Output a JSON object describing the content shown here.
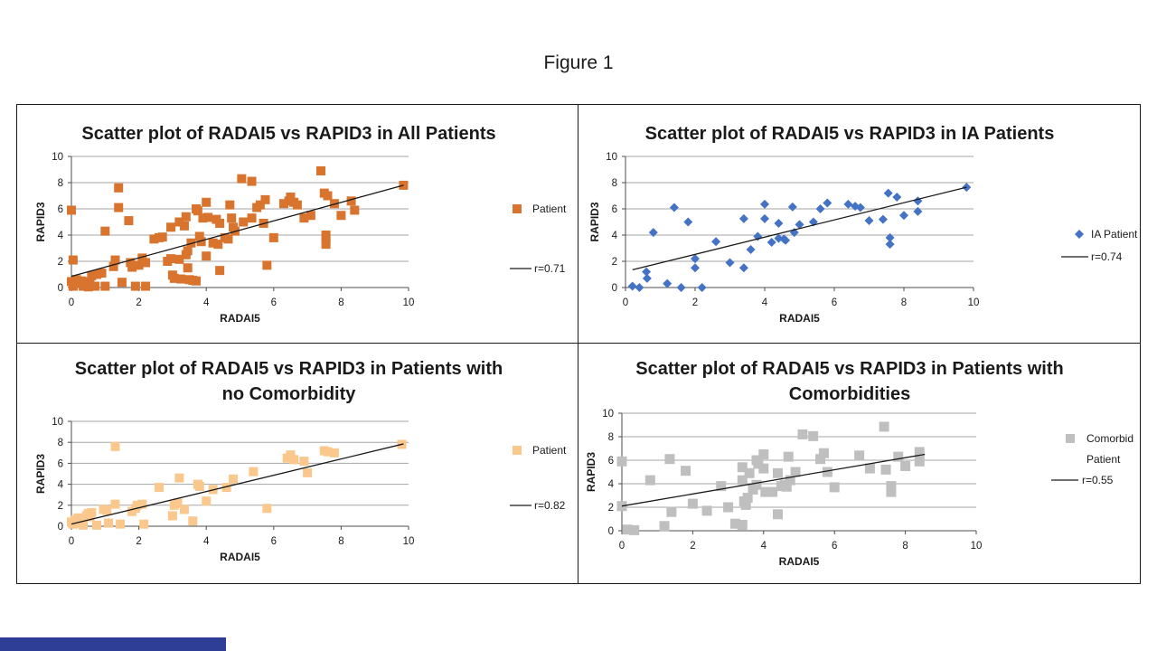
{
  "figure_title": "Figure 1",
  "colors": {
    "all_patients_marker": "#D9742E",
    "ia_patients_marker": "#4472C4",
    "no_comorbidity_marker": "#FAC88C",
    "comorbid_marker": "#BFBFBF",
    "trend_line": "#1a1a1a",
    "gridline": "#A6A6A6",
    "axis_line": "#4d4d4d",
    "panel_border": "#1a1a1a",
    "accent_bar": "#2E3D96"
  },
  "chart_data": [
    {
      "type": "scatter",
      "title_lines": [
        "Scatter plot of RADAI5 vs RAPID3 in All Patients"
      ],
      "xlabel": "RADAI5",
      "ylabel": "RAPID3",
      "xlim": [
        0,
        10
      ],
      "ylim": [
        0,
        10
      ],
      "xticks": [
        0,
        2,
        4,
        6,
        8,
        10
      ],
      "yticks": [
        0,
        2,
        4,
        6,
        8,
        10
      ],
      "grid": "horizontal",
      "legend_position": "right",
      "legend": {
        "series_label_lines": [
          "Patient"
        ],
        "trend_label": "r=0.71"
      },
      "marker": {
        "shape": "square",
        "color": "#D9742E",
        "size": 10
      },
      "trend": {
        "r": 0.71,
        "x1": 0,
        "y1": 0.85,
        "x2": 9.85,
        "y2": 7.8
      },
      "points": [
        [
          0,
          5.9
        ],
        [
          0.05,
          2.1
        ],
        [
          0,
          0.45
        ],
        [
          0.05,
          0.1
        ],
        [
          0.15,
          0.6
        ],
        [
          0.2,
          0.3
        ],
        [
          0.3,
          0.5
        ],
        [
          0.35,
          0.1
        ],
        [
          0.45,
          0.25
        ],
        [
          0.5,
          0.05
        ],
        [
          0.55,
          0.45
        ],
        [
          0.6,
          0.9
        ],
        [
          0.7,
          0.1
        ],
        [
          0.75,
          1.0
        ],
        [
          0.9,
          1.1
        ],
        [
          1.0,
          4.3
        ],
        [
          1.0,
          0.1
        ],
        [
          1.25,
          1.6
        ],
        [
          1.3,
          2.1
        ],
        [
          1.4,
          7.6
        ],
        [
          1.4,
          6.1
        ],
        [
          1.5,
          0.4
        ],
        [
          1.7,
          5.1
        ],
        [
          1.75,
          1.9
        ],
        [
          1.8,
          1.55
        ],
        [
          1.9,
          0.1
        ],
        [
          2.0,
          1.7
        ],
        [
          2.1,
          2.25
        ],
        [
          2.2,
          1.9
        ],
        [
          2.2,
          0.1
        ],
        [
          2.45,
          3.7
        ],
        [
          2.6,
          3.8
        ],
        [
          2.7,
          3.85
        ],
        [
          2.85,
          2.0
        ],
        [
          2.95,
          2.2
        ],
        [
          2.95,
          4.6
        ],
        [
          3.0,
          0.95
        ],
        [
          3.05,
          0.7
        ],
        [
          3.2,
          5.0
        ],
        [
          3.2,
          2.15
        ],
        [
          3.25,
          0.65
        ],
        [
          3.35,
          4.7
        ],
        [
          3.4,
          5.4
        ],
        [
          3.4,
          2.5
        ],
        [
          3.45,
          2.8
        ],
        [
          3.45,
          1.5
        ],
        [
          3.5,
          0.6
        ],
        [
          3.6,
          0.55
        ],
        [
          3.7,
          0.5
        ],
        [
          3.55,
          3.4
        ],
        [
          3.7,
          6.0
        ],
        [
          3.75,
          5.85
        ],
        [
          3.8,
          3.9
        ],
        [
          3.85,
          3.5
        ],
        [
          3.9,
          5.3
        ],
        [
          4.0,
          6.5
        ],
        [
          4.05,
          5.35
        ],
        [
          4.0,
          2.4
        ],
        [
          4.2,
          3.4
        ],
        [
          4.35,
          3.3
        ],
        [
          4.3,
          5.2
        ],
        [
          4.4,
          4.9
        ],
        [
          4.4,
          1.3
        ],
        [
          4.55,
          3.8
        ],
        [
          4.65,
          3.7
        ],
        [
          4.7,
          6.3
        ],
        [
          4.75,
          5.3
        ],
        [
          4.8,
          4.6
        ],
        [
          4.85,
          4.3
        ],
        [
          5.05,
          8.3
        ],
        [
          5.35,
          8.1
        ],
        [
          5.1,
          5.0
        ],
        [
          5.35,
          5.3
        ],
        [
          5.5,
          6.1
        ],
        [
          5.6,
          6.3
        ],
        [
          5.75,
          6.7
        ],
        [
          5.7,
          4.9
        ],
        [
          5.8,
          1.7
        ],
        [
          6.0,
          3.8
        ],
        [
          6.3,
          6.4
        ],
        [
          6.45,
          6.6
        ],
        [
          6.5,
          6.9
        ],
        [
          6.6,
          6.5
        ],
        [
          6.7,
          6.3
        ],
        [
          6.9,
          5.3
        ],
        [
          7.1,
          5.5
        ],
        [
          7.4,
          8.9
        ],
        [
          7.5,
          7.2
        ],
        [
          7.6,
          7.0
        ],
        [
          7.55,
          4.0
        ],
        [
          7.55,
          3.7
        ],
        [
          7.55,
          3.3
        ],
        [
          7.8,
          6.4
        ],
        [
          8.0,
          5.5
        ],
        [
          8.3,
          6.6
        ],
        [
          8.4,
          5.9
        ],
        [
          9.85,
          7.8
        ]
      ]
    },
    {
      "type": "scatter",
      "title_lines": [
        "Scatter plot of RADAI5 vs RAPID3 in IA Patients"
      ],
      "xlabel": "RADAI5",
      "ylabel": "RAPID3",
      "xlim": [
        0,
        10
      ],
      "ylim": [
        0,
        10
      ],
      "xticks": [
        0,
        2,
        4,
        6,
        8,
        10
      ],
      "yticks": [
        0,
        2,
        4,
        6,
        8,
        10
      ],
      "grid": "horizontal",
      "legend_position": "right",
      "legend": {
        "series_label_lines": [
          "IA Patient"
        ],
        "trend_label": "r=0.74"
      },
      "marker": {
        "shape": "diamond",
        "color": "#4472C4",
        "size": 10
      },
      "trend": {
        "r": 0.74,
        "x1": 0.2,
        "y1": 1.35,
        "x2": 9.8,
        "y2": 7.65
      },
      "points": [
        [
          0.2,
          0.1
        ],
        [
          0.4,
          0
        ],
        [
          0.6,
          1.2
        ],
        [
          0.62,
          0.7
        ],
        [
          0.8,
          4.2
        ],
        [
          1.2,
          0.3
        ],
        [
          1.4,
          6.1
        ],
        [
          1.6,
          0
        ],
        [
          1.8,
          5.0
        ],
        [
          2.0,
          2.2
        ],
        [
          2.0,
          1.5
        ],
        [
          2.2,
          0
        ],
        [
          2.6,
          3.5
        ],
        [
          3.0,
          1.9
        ],
        [
          3.4,
          5.25
        ],
        [
          3.4,
          1.5
        ],
        [
          3.6,
          2.9
        ],
        [
          3.8,
          3.9
        ],
        [
          4.0,
          6.35
        ],
        [
          4.0,
          5.25
        ],
        [
          4.2,
          3.45
        ],
        [
          4.4,
          4.9
        ],
        [
          4.4,
          3.75
        ],
        [
          4.55,
          3.7
        ],
        [
          4.6,
          3.6
        ],
        [
          4.8,
          6.15
        ],
        [
          4.85,
          4.2
        ],
        [
          5.0,
          4.8
        ],
        [
          5.4,
          5.0
        ],
        [
          5.6,
          6.0
        ],
        [
          5.8,
          6.45
        ],
        [
          6.4,
          6.35
        ],
        [
          6.6,
          6.2
        ],
        [
          6.75,
          6.1
        ],
        [
          7.0,
          5.1
        ],
        [
          7.4,
          5.2
        ],
        [
          7.55,
          7.2
        ],
        [
          7.6,
          3.8
        ],
        [
          7.6,
          3.3
        ],
        [
          7.8,
          6.9
        ],
        [
          8.0,
          5.5
        ],
        [
          8.4,
          6.6
        ],
        [
          8.4,
          5.8
        ],
        [
          9.8,
          7.65
        ]
      ]
    },
    {
      "type": "scatter",
      "title_lines": [
        "Scatter plot of RADAI5 vs RAPID3 in Patients with",
        "no Comorbidity"
      ],
      "xlabel": "RADAI5",
      "ylabel": "RAPID3",
      "xlim": [
        0,
        10
      ],
      "ylim": [
        0,
        10
      ],
      "xticks": [
        0,
        2,
        4,
        6,
        8,
        10
      ],
      "yticks": [
        0,
        2,
        4,
        6,
        8,
        10
      ],
      "grid": "horizontal",
      "legend_position": "right",
      "legend": {
        "series_label_lines": [
          "Patient"
        ],
        "trend_label": "r=0.82"
      },
      "marker": {
        "shape": "square",
        "color": "#FAC88C",
        "size": 10
      },
      "trend": {
        "r": 0.82,
        "x1": 0,
        "y1": 0.2,
        "x2": 9.85,
        "y2": 7.85
      },
      "points": [
        [
          0,
          0.4
        ],
        [
          0.05,
          0.2
        ],
        [
          0.1,
          0.6
        ],
        [
          0.2,
          0.8
        ],
        [
          0.3,
          0.3
        ],
        [
          0.35,
          0.1
        ],
        [
          0.45,
          1.0
        ],
        [
          0.5,
          1.2
        ],
        [
          0.55,
          0.9
        ],
        [
          0.6,
          1.3
        ],
        [
          0.75,
          0.1
        ],
        [
          0.95,
          1.6
        ],
        [
          1.05,
          1.5
        ],
        [
          1.1,
          0.3
        ],
        [
          1.3,
          7.6
        ],
        [
          1.3,
          2.1
        ],
        [
          1.45,
          0.2
        ],
        [
          1.8,
          1.4
        ],
        [
          1.9,
          1.7
        ],
        [
          1.95,
          2.0
        ],
        [
          2.1,
          2.1
        ],
        [
          2.15,
          0.2
        ],
        [
          2.6,
          3.7
        ],
        [
          3.0,
          1.0
        ],
        [
          3.05,
          2.0
        ],
        [
          3.15,
          2.2
        ],
        [
          3.2,
          4.6
        ],
        [
          3.35,
          1.6
        ],
        [
          3.6,
          0.5
        ],
        [
          3.75,
          4.0
        ],
        [
          3.8,
          3.8
        ],
        [
          4.0,
          2.4
        ],
        [
          4.2,
          3.5
        ],
        [
          4.6,
          3.7
        ],
        [
          4.8,
          4.5
        ],
        [
          5.4,
          5.2
        ],
        [
          5.8,
          1.7
        ],
        [
          6.4,
          6.5
        ],
        [
          6.5,
          6.8
        ],
        [
          6.6,
          6.35
        ],
        [
          6.9,
          6.2
        ],
        [
          7.0,
          5.1
        ],
        [
          7.5,
          7.2
        ],
        [
          7.6,
          7.1
        ],
        [
          7.8,
          7.0
        ],
        [
          9.8,
          7.8
        ]
      ]
    },
    {
      "type": "scatter",
      "title_lines": [
        "Scatter plot of RADAI5 vs RAPID3 in Patients with",
        "Comorbidities"
      ],
      "xlabel": "RADAI5",
      "ylabel": "RAPID3",
      "xlim": [
        0,
        10
      ],
      "ylim": [
        0,
        10
      ],
      "xticks": [
        0,
        2,
        4,
        6,
        8,
        10
      ],
      "yticks": [
        0,
        2,
        4,
        6,
        8,
        10
      ],
      "grid": "horizontal",
      "legend_position": "right",
      "legend": {
        "series_label_lines": [
          "Comorbid",
          "Patient"
        ],
        "trend_label": "r=0.55"
      },
      "marker": {
        "shape": "square",
        "color": "#BFBFBF",
        "size": 11
      },
      "trend": {
        "r": 0.55,
        "x1": 0,
        "y1": 2.1,
        "x2": 8.55,
        "y2": 6.5
      },
      "points": [
        [
          0,
          5.9
        ],
        [
          0,
          2.1
        ],
        [
          0.15,
          0.1
        ],
        [
          0.35,
          0.05
        ],
        [
          0.8,
          4.3
        ],
        [
          1.2,
          0.4
        ],
        [
          1.35,
          6.1
        ],
        [
          1.4,
          1.6
        ],
        [
          1.8,
          5.1
        ],
        [
          2.0,
          2.3
        ],
        [
          2.4,
          1.7
        ],
        [
          2.8,
          3.8
        ],
        [
          3.0,
          2.0
        ],
        [
          3.2,
          0.6
        ],
        [
          3.4,
          0.5
        ],
        [
          3.4,
          5.4
        ],
        [
          3.4,
          4.3
        ],
        [
          3.45,
          2.5
        ],
        [
          3.5,
          2.2
        ],
        [
          3.55,
          2.8
        ],
        [
          3.6,
          4.9
        ],
        [
          3.7,
          3.5
        ],
        [
          3.8,
          6.0
        ],
        [
          3.85,
          5.7
        ],
        [
          3.8,
          3.9
        ],
        [
          4.0,
          6.5
        ],
        [
          4.0,
          5.3
        ],
        [
          4.05,
          3.3
        ],
        [
          4.25,
          3.3
        ],
        [
          4.4,
          4.9
        ],
        [
          4.4,
          1.4
        ],
        [
          4.5,
          3.8
        ],
        [
          4.6,
          3.9
        ],
        [
          4.65,
          3.75
        ],
        [
          4.7,
          6.3
        ],
        [
          4.75,
          4.3
        ],
        [
          4.9,
          5.0
        ],
        [
          5.1,
          8.2
        ],
        [
          5.4,
          8.05
        ],
        [
          5.6,
          6.1
        ],
        [
          5.7,
          6.6
        ],
        [
          5.8,
          5.0
        ],
        [
          6.0,
          3.7
        ],
        [
          6.7,
          6.4
        ],
        [
          7.0,
          5.3
        ],
        [
          7.4,
          8.85
        ],
        [
          7.45,
          5.2
        ],
        [
          7.6,
          3.8
        ],
        [
          7.6,
          3.3
        ],
        [
          7.8,
          6.3
        ],
        [
          8.0,
          5.5
        ],
        [
          8.4,
          6.7
        ],
        [
          8.4,
          5.9
        ]
      ]
    }
  ]
}
